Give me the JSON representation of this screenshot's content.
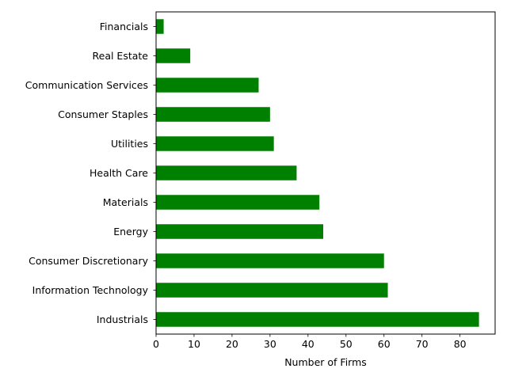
{
  "chart_data": {
    "type": "bar",
    "orientation": "horizontal",
    "categories": [
      "Industrials",
      "Information Technology",
      "Consumer Discretionary",
      "Energy",
      "Materials",
      "Health Care",
      "Utilities",
      "Consumer Staples",
      "Communication Services",
      "Real Estate",
      "Financials"
    ],
    "values": [
      85,
      61,
      60,
      44,
      43,
      37,
      31,
      30,
      27,
      9,
      2
    ],
    "xlabel": "Number of Firms",
    "ylabel": "",
    "xlim": [
      0,
      89.25
    ],
    "xticks": [
      0,
      10,
      20,
      30,
      40,
      50,
      60,
      70,
      80
    ],
    "bar_color": "#008000",
    "grid": false,
    "legend": "none"
  }
}
